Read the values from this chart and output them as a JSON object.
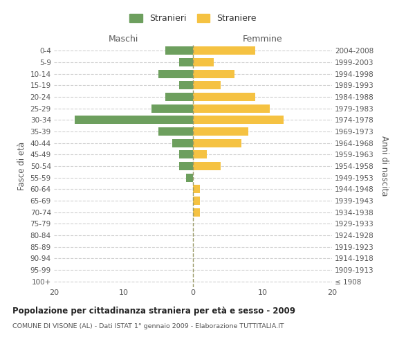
{
  "age_groups": [
    "100+",
    "95-99",
    "90-94",
    "85-89",
    "80-84",
    "75-79",
    "70-74",
    "65-69",
    "60-64",
    "55-59",
    "50-54",
    "45-49",
    "40-44",
    "35-39",
    "30-34",
    "25-29",
    "20-24",
    "15-19",
    "10-14",
    "5-9",
    "0-4"
  ],
  "birth_years": [
    "≤ 1908",
    "1909-1913",
    "1914-1918",
    "1919-1923",
    "1924-1928",
    "1929-1933",
    "1934-1938",
    "1939-1943",
    "1944-1948",
    "1949-1953",
    "1954-1958",
    "1959-1963",
    "1964-1968",
    "1969-1973",
    "1974-1978",
    "1979-1983",
    "1984-1988",
    "1989-1993",
    "1994-1998",
    "1999-2003",
    "2004-2008"
  ],
  "males": [
    0,
    0,
    0,
    0,
    0,
    0,
    0,
    0,
    0,
    1,
    2,
    2,
    3,
    5,
    17,
    6,
    4,
    2,
    5,
    2,
    4
  ],
  "females": [
    0,
    0,
    0,
    0,
    0,
    0,
    1,
    1,
    1,
    0,
    4,
    2,
    7,
    8,
    13,
    11,
    9,
    4,
    6,
    3,
    9
  ],
  "male_color": "#6d9f5e",
  "female_color": "#f5c242",
  "title": "Popolazione per cittadinanza straniera per età e sesso - 2009",
  "subtitle": "COMUNE DI VISONE (AL) - Dati ISTAT 1° gennaio 2009 - Elaborazione TUTTITALIA.IT",
  "xlabel_left": "Maschi",
  "xlabel_right": "Femmine",
  "ylabel_left": "Fasce di età",
  "ylabel_right": "Anni di nascita",
  "legend_stranieri": "Stranieri",
  "legend_straniere": "Straniere",
  "xlim": 20,
  "background_color": "#ffffff",
  "grid_color": "#d0d0d0"
}
